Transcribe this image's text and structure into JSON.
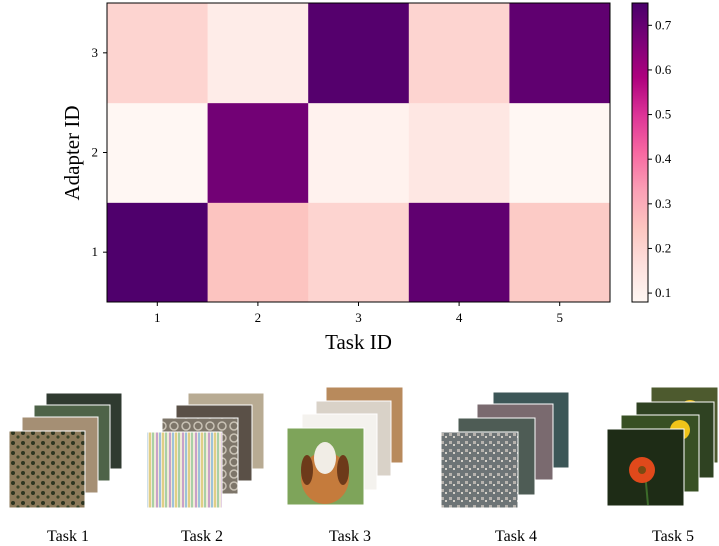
{
  "chart_data": {
    "type": "heatmap",
    "xlabel": "Task ID",
    "ylabel": "Adapter ID",
    "x_categories": [
      "1",
      "2",
      "3",
      "4",
      "5"
    ],
    "y_categories": [
      "1",
      "2",
      "3"
    ],
    "values": [
      [
        0.74,
        0.25,
        0.2,
        0.71,
        0.23
      ],
      [
        0.08,
        0.68,
        0.1,
        0.14,
        0.07
      ],
      [
        0.2,
        0.12,
        0.73,
        0.2,
        0.71
      ]
    ],
    "colorbar": {
      "range": [
        0.08,
        0.75
      ],
      "ticks": [
        "0.1",
        "0.2",
        "0.3",
        "0.4",
        "0.5",
        "0.6",
        "0.7"
      ],
      "colormap": "RdPu"
    },
    "grid": false,
    "legend": "none"
  },
  "tasks": [
    {
      "label": "Task 1",
      "theme": "aerial-farmland"
    },
    {
      "label": "Task 2",
      "theme": "textures"
    },
    {
      "label": "Task 3",
      "theme": "pets"
    },
    {
      "label": "Task 4",
      "theme": "satellite"
    },
    {
      "label": "Task 5",
      "theme": "flowers"
    }
  ]
}
